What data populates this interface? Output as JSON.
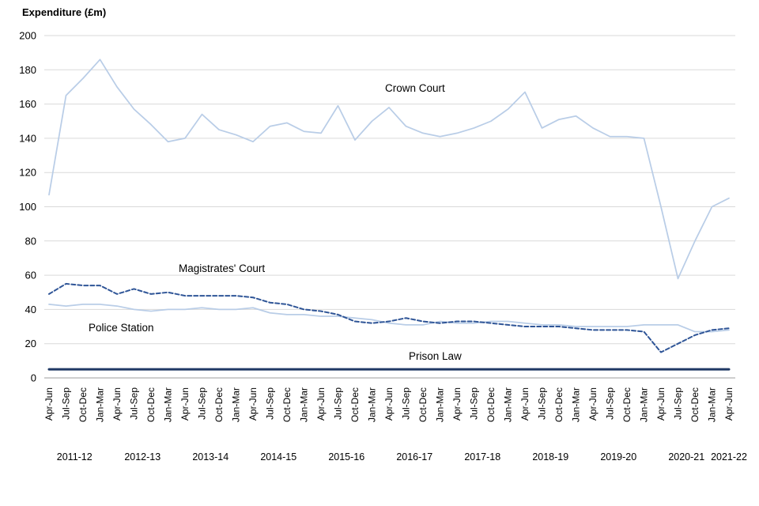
{
  "title": "Expenditure (£m)",
  "chart_data": {
    "type": "line",
    "title": "Expenditure (£m)",
    "ylabel": "Expenditure (£m)",
    "xlabel": "",
    "ylim": [
      0,
      200
    ],
    "ytick_step": 20,
    "grid": true,
    "legend_position": "inline-annotations",
    "categories": [
      "Apr-Jun",
      "Jul-Sep",
      "Oct-Dec",
      "Jan-Mar",
      "Apr-Jun",
      "Jul-Sep",
      "Oct-Dec",
      "Jan-Mar",
      "Apr-Jun",
      "Jul-Sep",
      "Oct-Dec",
      "Jan-Mar",
      "Apr-Jun",
      "Jul-Sep",
      "Oct-Dec",
      "Jan-Mar",
      "Apr-Jun",
      "Jul-Sep",
      "Oct-Dec",
      "Jan-Mar",
      "Apr-Jun",
      "Jul-Sep",
      "Oct-Dec",
      "Jan-Mar",
      "Apr-Jun",
      "Jul-Sep",
      "Oct-Dec",
      "Jan-Mar",
      "Apr-Jun",
      "Jul-Sep",
      "Oct-Dec",
      "Jan-Mar",
      "Apr-Jun",
      "Jul-Sep",
      "Oct-Dec",
      "Jan-Mar",
      "Apr-Jun",
      "Jul-Sep",
      "Oct-Dec",
      "Jan-Mar",
      "Apr-Jun"
    ],
    "year_groups": [
      {
        "label": "2011-12",
        "span": 4
      },
      {
        "label": "2012-13",
        "span": 4
      },
      {
        "label": "2013-14",
        "span": 4
      },
      {
        "label": "2014-15",
        "span": 4
      },
      {
        "label": "2015-16",
        "span": 4
      },
      {
        "label": "2016-17",
        "span": 4
      },
      {
        "label": "2017-18",
        "span": 4
      },
      {
        "label": "2018-19",
        "span": 4
      },
      {
        "label": "2019-20",
        "span": 4
      },
      {
        "label": "2020-21",
        "span": 4
      },
      {
        "label": "2021-22",
        "span": 1
      }
    ],
    "series": [
      {
        "name": "Crown Court",
        "style": "solid",
        "color": "#b9cde7",
        "width": 1.75,
        "values": [
          107,
          165,
          175,
          186,
          170,
          157,
          148,
          138,
          140,
          154,
          145,
          142,
          138,
          147,
          149,
          144,
          143,
          159,
          139,
          150,
          158,
          147,
          143,
          141,
          143,
          146,
          150,
          157,
          167,
          146,
          151,
          153,
          146,
          141,
          141,
          140,
          100,
          58,
          80,
          100,
          105
        ]
      },
      {
        "name": "Police Station",
        "style": "solid",
        "color": "#b9cde7",
        "width": 1.75,
        "values": [
          43,
          42,
          43,
          43,
          42,
          40,
          39,
          40,
          40,
          41,
          40,
          40,
          41,
          38,
          37,
          37,
          36,
          36,
          35,
          34,
          32,
          31,
          31,
          33,
          32,
          32,
          33,
          33,
          32,
          31,
          31,
          30,
          30,
          30,
          30,
          31,
          31,
          31,
          27,
          27,
          28
        ]
      },
      {
        "name": "Magistrates' Court",
        "style": "dashed",
        "color": "#2f5597",
        "width": 2,
        "values": [
          49,
          55,
          54,
          54,
          49,
          52,
          49,
          50,
          48,
          48,
          48,
          48,
          47,
          44,
          43,
          40,
          39,
          37,
          33,
          32,
          33,
          35,
          33,
          32,
          33,
          33,
          32,
          31,
          30,
          30,
          30,
          29,
          28,
          28,
          28,
          27,
          15,
          20,
          25,
          28,
          29
        ]
      },
      {
        "name": "Prison Law",
        "style": "solid",
        "color": "#1f3864",
        "width": 3,
        "values": [
          5,
          5,
          5,
          5,
          5,
          5,
          5,
          5,
          5,
          5,
          5,
          5,
          5,
          5,
          5,
          5,
          5,
          5,
          5,
          5,
          5,
          5,
          5,
          5,
          5,
          5,
          5,
          5,
          5,
          5,
          5,
          5,
          5,
          5,
          5,
          5,
          5,
          5,
          5,
          5,
          5
        ]
      }
    ],
    "yticks": [
      "0",
      "20",
      "40",
      "60",
      "80",
      "100",
      "120",
      "140",
      "160",
      "180",
      "200"
    ],
    "colors": {
      "light_blue_line": "#b9cde7",
      "dashed_blue_line": "#2f5597",
      "dark_navy_line": "#1f3864",
      "gridline": "#d9d9d9",
      "axis_line": "#9e9e9e",
      "text": "#000000"
    }
  }
}
